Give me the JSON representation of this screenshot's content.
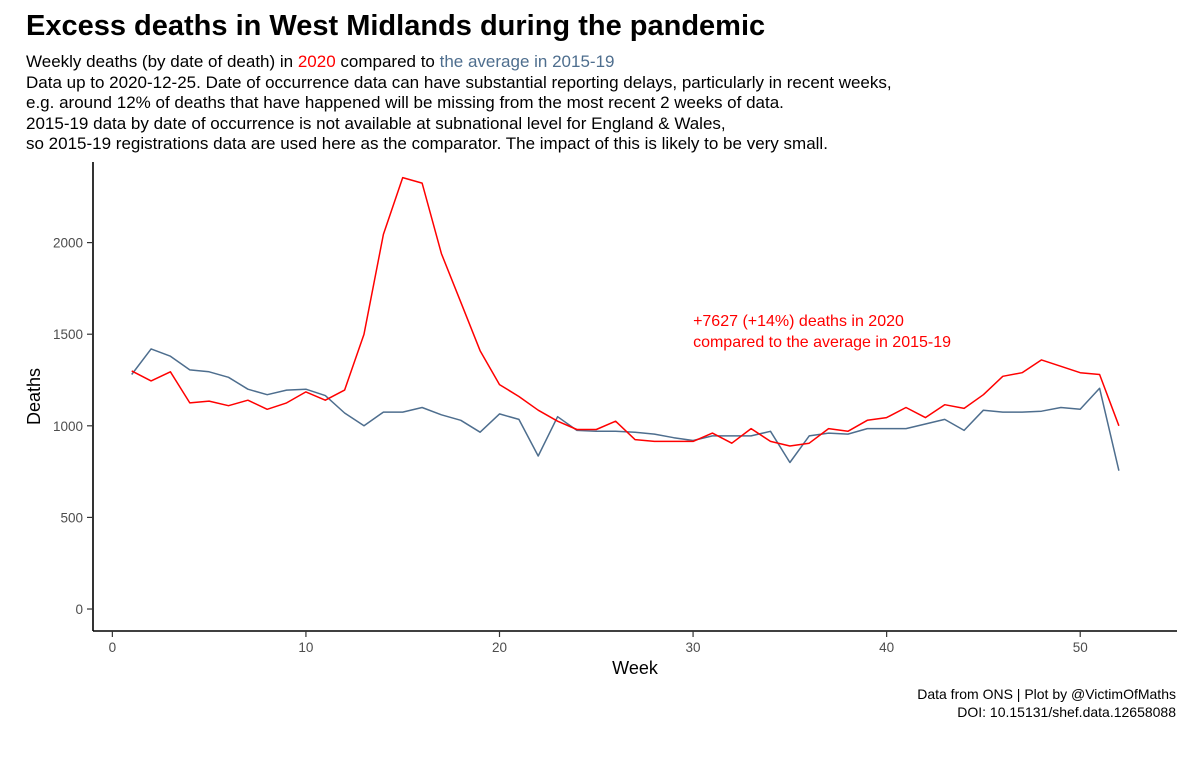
{
  "chart_data": {
    "type": "line",
    "title": "Excess deaths in West Midlands during the pandemic",
    "subtitle": {
      "prefix": "Weekly deaths (by date of death) in ",
      "series_2020": "2020",
      "middle": " compared to ",
      "series_avg": "the average in 2015-19",
      "line2": "Data up to 2020-12-25. Date of occurrence data can have substantial reporting delays, particularly in recent weeks,",
      "line3": "e.g. around 12% of deaths that have happened will be missing from the most recent 2 weeks of data.",
      "line4": "2015-19 data by date of occurrence is not available at subnational level for England & Wales,",
      "line5": "so 2015-19 registrations data are used here as the comparator. The impact of this is likely to be very small."
    },
    "xlabel": "Week",
    "ylabel": "Deaths",
    "xlim": [
      -1,
      55
    ],
    "ylim": [
      -120,
      2440
    ],
    "x_ticks": [
      0,
      10,
      20,
      30,
      40,
      50
    ],
    "y_ticks": [
      0,
      500,
      1000,
      1500,
      2000
    ],
    "grid": false,
    "x": [
      1,
      2,
      3,
      4,
      5,
      6,
      7,
      8,
      9,
      10,
      11,
      12,
      13,
      14,
      15,
      16,
      17,
      18,
      19,
      20,
      21,
      22,
      23,
      24,
      25,
      26,
      27,
      28,
      29,
      30,
      31,
      32,
      33,
      34,
      35,
      36,
      37,
      38,
      39,
      40,
      41,
      42,
      43,
      44,
      45,
      46,
      47,
      48,
      49,
      50,
      51,
      52
    ],
    "series": [
      {
        "name": "2020",
        "color": "#ff0000",
        "values": [
          1300,
          1245,
          1295,
          1125,
          1135,
          1110,
          1140,
          1090,
          1125,
          1185,
          1140,
          1195,
          1500,
          2045,
          2355,
          2325,
          1940,
          1675,
          1410,
          1225,
          1160,
          1085,
          1025,
          980,
          980,
          1025,
          925,
          915,
          915,
          915,
          960,
          905,
          985,
          915,
          890,
          905,
          985,
          970,
          1030,
          1045,
          1100,
          1045,
          1115,
          1095,
          1170,
          1270,
          1290,
          1360,
          1325,
          1290,
          1280,
          1000
        ]
      },
      {
        "name": "the average in 2015-19",
        "color": "#4e6e8e",
        "values": [
          1280,
          1420,
          1380,
          1305,
          1295,
          1265,
          1200,
          1170,
          1195,
          1200,
          1165,
          1070,
          1000,
          1075,
          1075,
          1100,
          1060,
          1030,
          965,
          1065,
          1035,
          835,
          1050,
          975,
          970,
          970,
          965,
          955,
          935,
          920,
          945,
          945,
          945,
          970,
          800,
          945,
          960,
          955,
          985,
          985,
          985,
          1010,
          1035,
          975,
          1085,
          1075,
          1075,
          1080,
          1100,
          1090,
          1205,
          755
        ]
      }
    ],
    "annotation": {
      "line1": "+7627 (+14%) deaths in 2020",
      "line2": "compared to the average in 2015-19",
      "color": "#ff0000"
    },
    "caption": {
      "line1": "Data from ONS | Plot by @VictimOfMaths",
      "line2": "DOI: 10.15131/shef.data.12658088"
    }
  }
}
